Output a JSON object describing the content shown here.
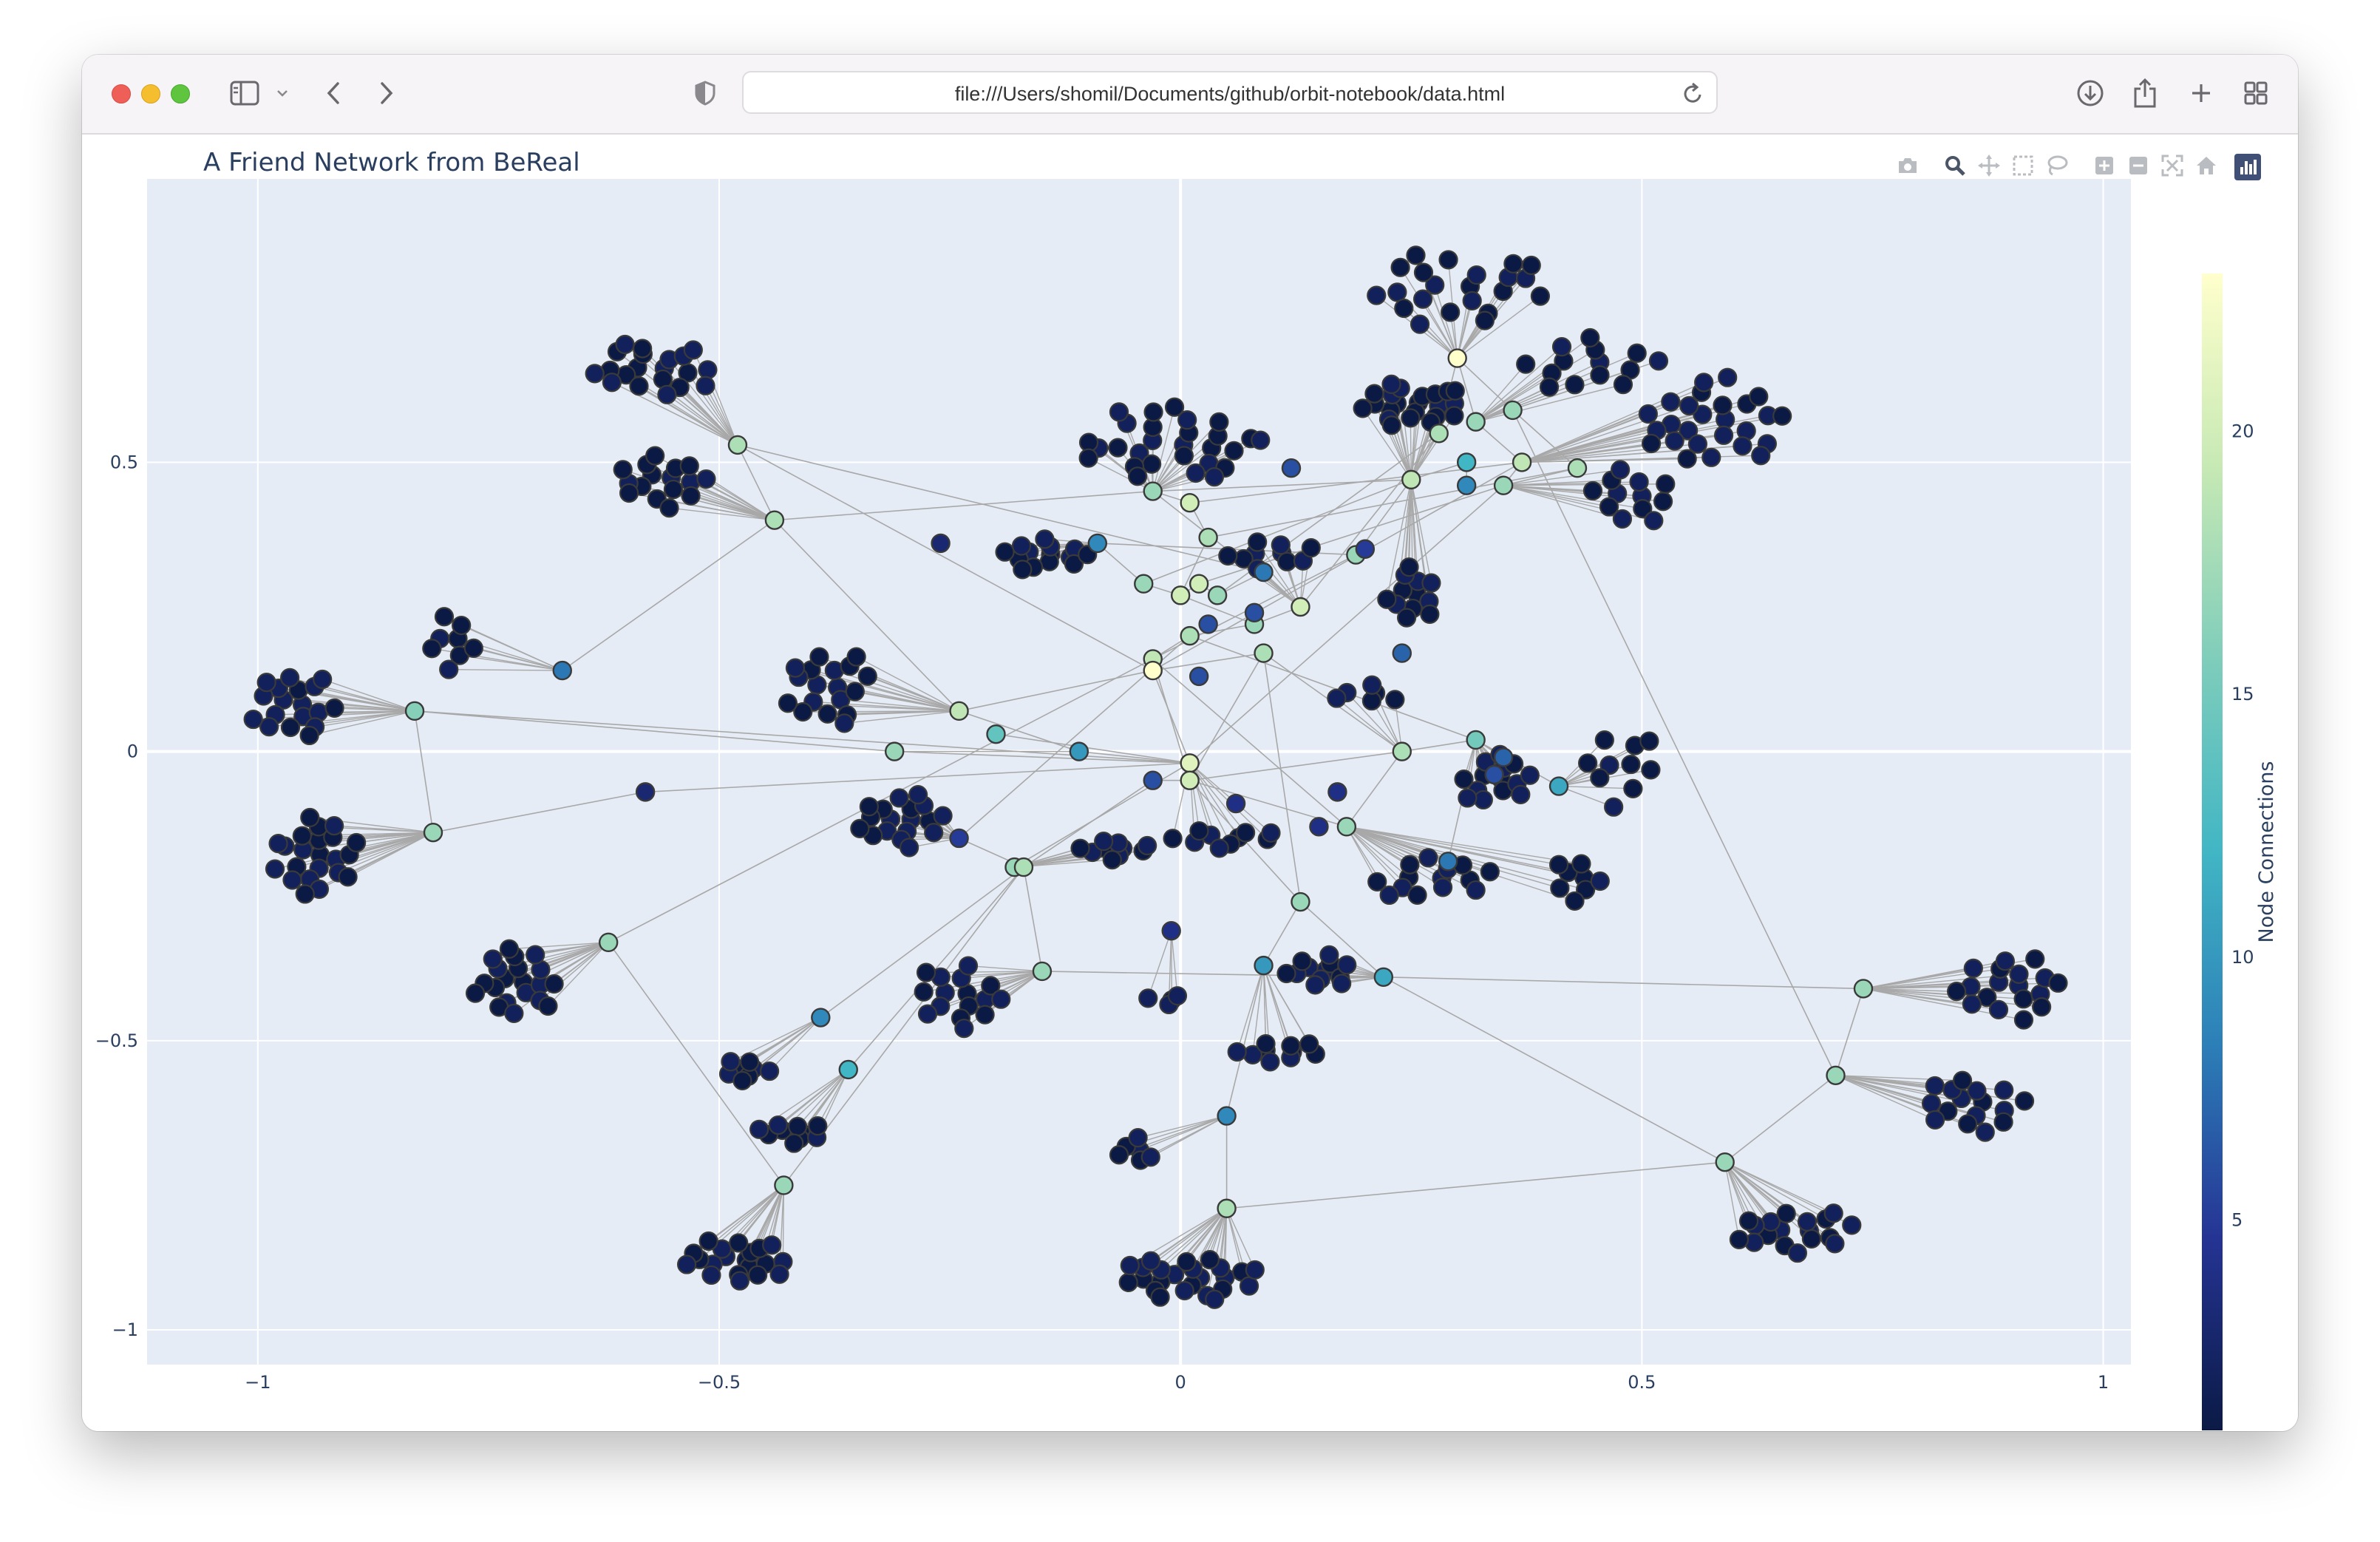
{
  "browser": {
    "url": "file:///Users/shomil/Documents/github/orbit-notebook/data.html",
    "icons": [
      "sidebar-icon",
      "chevron-down-icon",
      "back-icon",
      "forward-icon",
      "shield-icon",
      "reload-icon",
      "download-icon",
      "share-icon",
      "plus-icon",
      "tab-overview-icon"
    ]
  },
  "plot": {
    "title": "A Friend Network from BeReal",
    "colorbar_title": "Node Connections",
    "colorbar_ticks": [
      5,
      10,
      15,
      20
    ],
    "color_range": [
      1,
      23
    ],
    "colorscale": [
      "#0b1a45",
      "#253494",
      "#2c7fb8",
      "#41b6c4",
      "#7fcdbb",
      "#c7e9b4",
      "#ffffcc"
    ],
    "xlim": [
      -1.12,
      1.03
    ],
    "ylim": [
      -1.06,
      0.99
    ],
    "xticks": [
      -1,
      -0.5,
      0,
      0.5,
      1
    ],
    "xtick_labels": [
      "−1",
      "−0.5",
      "0",
      "0.5",
      "1"
    ],
    "yticks": [
      -1,
      -0.5,
      0,
      0.5
    ],
    "ytick_labels": [
      "−1",
      "−0.5",
      "0",
      "0.5"
    ],
    "bg_color": "#e5ecf6",
    "edge_color": "#a8a8a8",
    "modebar_icons": [
      "camera-icon",
      "zoom-icon",
      "pan-icon",
      "box-select-icon",
      "lasso-icon",
      "zoom-in-icon",
      "zoom-out-icon",
      "autoscale-icon",
      "home-icon",
      "plotly-logo-icon"
    ]
  },
  "chart_data": {
    "type": "scatter",
    "title": "A Friend Network from BeReal",
    "xlabel": "",
    "ylabel": "",
    "legend": "colorbar-right",
    "grid": true,
    "hubs": [
      {
        "x": 0.3,
        "y": 0.68,
        "c": 23
      },
      {
        "x": 0.32,
        "y": 0.57,
        "c": 17
      },
      {
        "x": 0.36,
        "y": 0.59,
        "c": 17
      },
      {
        "x": 0.28,
        "y": 0.55,
        "c": 18
      },
      {
        "x": 0.37,
        "y": 0.5,
        "c": 19
      },
      {
        "x": 0.43,
        "y": 0.49,
        "c": 18
      },
      {
        "x": 0.35,
        "y": 0.46,
        "c": 17
      },
      {
        "x": 0.25,
        "y": 0.47,
        "c": 19
      },
      {
        "x": 0.31,
        "y": 0.5,
        "c": 12
      },
      {
        "x": 0.31,
        "y": 0.46,
        "c": 9
      },
      {
        "x": -0.48,
        "y": 0.53,
        "c": 18
      },
      {
        "x": -0.44,
        "y": 0.4,
        "c": 18
      },
      {
        "x": -0.83,
        "y": 0.07,
        "c": 16
      },
      {
        "x": -0.67,
        "y": 0.14,
        "c": 8
      },
      {
        "x": -0.81,
        "y": -0.14,
        "c": 17
      },
      {
        "x": -0.31,
        "y": 0.0,
        "c": 17
      },
      {
        "x": -0.24,
        "y": 0.07,
        "c": 19
      },
      {
        "x": -0.2,
        "y": 0.03,
        "c": 14
      },
      {
        "x": -0.11,
        "y": 0.0,
        "c": 10
      },
      {
        "x": -0.03,
        "y": 0.45,
        "c": 17
      },
      {
        "x": 0.01,
        "y": 0.43,
        "c": 20
      },
      {
        "x": 0.03,
        "y": 0.37,
        "c": 18
      },
      {
        "x": -0.09,
        "y": 0.36,
        "c": 9
      },
      {
        "x": -0.04,
        "y": 0.29,
        "c": 17
      },
      {
        "x": 0.0,
        "y": 0.27,
        "c": 20
      },
      {
        "x": 0.02,
        "y": 0.29,
        "c": 20
      },
      {
        "x": 0.04,
        "y": 0.27,
        "c": 17
      },
      {
        "x": 0.09,
        "y": 0.31,
        "c": 8
      },
      {
        "x": 0.13,
        "y": 0.25,
        "c": 20
      },
      {
        "x": 0.08,
        "y": 0.22,
        "c": 17
      },
      {
        "x": 0.01,
        "y": 0.2,
        "c": 18
      },
      {
        "x": -0.03,
        "y": 0.16,
        "c": 19
      },
      {
        "x": -0.03,
        "y": 0.14,
        "c": 23
      },
      {
        "x": 0.09,
        "y": 0.17,
        "c": 18
      },
      {
        "x": 0.19,
        "y": 0.34,
        "c": 17
      },
      {
        "x": 0.24,
        "y": 0.0,
        "c": 18
      },
      {
        "x": 0.32,
        "y": 0.02,
        "c": 15
      },
      {
        "x": 0.41,
        "y": -0.06,
        "c": 11
      },
      {
        "x": 0.01,
        "y": -0.02,
        "c": 21
      },
      {
        "x": 0.01,
        "y": -0.05,
        "c": 20
      },
      {
        "x": -0.03,
        "y": -0.05,
        "c": 6
      },
      {
        "x": -0.24,
        "y": -0.15,
        "c": 5
      },
      {
        "x": -0.18,
        "y": -0.2,
        "c": 17
      },
      {
        "x": -0.17,
        "y": -0.2,
        "c": 18
      },
      {
        "x": 0.18,
        "y": -0.13,
        "c": 17
      },
      {
        "x": 0.29,
        "y": -0.19,
        "c": 8
      },
      {
        "x": 0.13,
        "y": -0.26,
        "c": 17
      },
      {
        "x": -0.15,
        "y": -0.38,
        "c": 17
      },
      {
        "x": 0.09,
        "y": -0.37,
        "c": 10
      },
      {
        "x": 0.22,
        "y": -0.39,
        "c": 11
      },
      {
        "x": -0.39,
        "y": -0.46,
        "c": 9
      },
      {
        "x": -0.36,
        "y": -0.55,
        "c": 12
      },
      {
        "x": -0.43,
        "y": -0.75,
        "c": 17
      },
      {
        "x": -0.62,
        "y": -0.33,
        "c": 17
      },
      {
        "x": -0.58,
        "y": -0.07,
        "c": 3
      },
      {
        "x": 0.05,
        "y": -0.63,
        "c": 9
      },
      {
        "x": 0.05,
        "y": -0.79,
        "c": 18
      },
      {
        "x": 0.74,
        "y": -0.41,
        "c": 17
      },
      {
        "x": 0.71,
        "y": -0.56,
        "c": 17
      },
      {
        "x": 0.59,
        "y": -0.71,
        "c": 17
      },
      {
        "x": -0.01,
        "y": -0.31,
        "c": 4
      },
      {
        "x": 0.2,
        "y": 0.35,
        "c": 5
      },
      {
        "x": -0.26,
        "y": 0.36,
        "c": 3
      },
      {
        "x": 0.08,
        "y": 0.24,
        "c": 6
      },
      {
        "x": 0.03,
        "y": 0.22,
        "c": 6
      },
      {
        "x": 0.24,
        "y": 0.17,
        "c": 7
      },
      {
        "x": 0.12,
        "y": 0.49,
        "c": 6
      },
      {
        "x": 0.02,
        "y": 0.13,
        "c": 6
      },
      {
        "x": 0.15,
        "y": -0.13,
        "c": 4
      },
      {
        "x": 0.06,
        "y": -0.09,
        "c": 4
      },
      {
        "x": 0.17,
        "y": -0.07,
        "c": 4
      },
      {
        "x": 0.35,
        "y": -0.01,
        "c": 7
      },
      {
        "x": 0.34,
        "y": -0.04,
        "c": 6
      }
    ],
    "clusters": [
      {
        "hub": 0,
        "n": 22,
        "cx": 0.3,
        "cy": 0.8,
        "rx": 0.1,
        "ry": 0.07
      },
      {
        "hub": 1,
        "n": 14,
        "cx": 0.44,
        "cy": 0.67,
        "rx": 0.08,
        "ry": 0.05
      },
      {
        "hub": 4,
        "n": 26,
        "cx": 0.58,
        "cy": 0.57,
        "rx": 0.08,
        "ry": 0.08
      },
      {
        "hub": 6,
        "n": 12,
        "cx": 0.49,
        "cy": 0.44,
        "rx": 0.05,
        "ry": 0.05
      },
      {
        "hub": 10,
        "n": 20,
        "cx": -0.57,
        "cy": 0.66,
        "rx": 0.07,
        "ry": 0.05
      },
      {
        "hub": 11,
        "n": 16,
        "cx": -0.56,
        "cy": 0.47,
        "rx": 0.05,
        "ry": 0.05
      },
      {
        "hub": 12,
        "n": 18,
        "cx": -0.96,
        "cy": 0.08,
        "rx": 0.05,
        "ry": 0.06
      },
      {
        "hub": 13,
        "n": 8,
        "cx": -0.79,
        "cy": 0.19,
        "rx": 0.03,
        "ry": 0.05
      },
      {
        "hub": 14,
        "n": 22,
        "cx": -0.94,
        "cy": -0.18,
        "rx": 0.05,
        "ry": 0.07
      },
      {
        "hub": 16,
        "n": 18,
        "cx": -0.38,
        "cy": 0.11,
        "rx": 0.05,
        "ry": 0.07
      },
      {
        "hub": 19,
        "n": 28,
        "cx": -0.01,
        "cy": 0.53,
        "rx": 0.1,
        "ry": 0.07
      },
      {
        "hub": 22,
        "n": 14,
        "cx": -0.15,
        "cy": 0.34,
        "rx": 0.05,
        "ry": 0.03
      },
      {
        "hub": 28,
        "n": 10,
        "cx": 0.1,
        "cy": 0.34,
        "rx": 0.05,
        "ry": 0.03
      },
      {
        "hub": 7,
        "n": 22,
        "cx": 0.25,
        "cy": 0.6,
        "rx": 0.06,
        "ry": 0.04
      },
      {
        "hub": 7,
        "n": 12,
        "cx": 0.25,
        "cy": 0.27,
        "rx": 0.03,
        "ry": 0.05
      },
      {
        "hub": 36,
        "n": 14,
        "cx": 0.34,
        "cy": -0.05,
        "rx": 0.04,
        "ry": 0.05
      },
      {
        "hub": 37,
        "n": 10,
        "cx": 0.48,
        "cy": -0.03,
        "rx": 0.04,
        "ry": 0.08
      },
      {
        "hub": 35,
        "n": 6,
        "cx": 0.2,
        "cy": 0.1,
        "rx": 0.04,
        "ry": 0.02
      },
      {
        "hub": 41,
        "n": 18,
        "cx": -0.3,
        "cy": -0.12,
        "rx": 0.05,
        "ry": 0.05
      },
      {
        "hub": 42,
        "n": 10,
        "cx": -0.07,
        "cy": -0.17,
        "rx": 0.04,
        "ry": 0.02
      },
      {
        "hub": 44,
        "n": 14,
        "cx": 0.27,
        "cy": -0.22,
        "rx": 0.07,
        "ry": 0.04
      },
      {
        "hub": 44,
        "n": 8,
        "cx": 0.43,
        "cy": -0.22,
        "rx": 0.03,
        "ry": 0.04
      },
      {
        "hub": 47,
        "n": 16,
        "cx": -0.24,
        "cy": -0.42,
        "rx": 0.05,
        "ry": 0.06
      },
      {
        "hub": 48,
        "n": 10,
        "cx": 0.11,
        "cy": -0.52,
        "rx": 0.05,
        "ry": 0.02
      },
      {
        "hub": 49,
        "n": 12,
        "cx": 0.15,
        "cy": -0.38,
        "rx": 0.04,
        "ry": 0.03
      },
      {
        "hub": 50,
        "n": 8,
        "cx": -0.47,
        "cy": -0.55,
        "rx": 0.03,
        "ry": 0.02
      },
      {
        "hub": 51,
        "n": 10,
        "cx": -0.42,
        "cy": -0.66,
        "rx": 0.04,
        "ry": 0.02
      },
      {
        "hub": 52,
        "n": 20,
        "cx": -0.48,
        "cy": -0.88,
        "rx": 0.06,
        "ry": 0.04
      },
      {
        "hub": 53,
        "n": 20,
        "cx": -0.72,
        "cy": -0.4,
        "rx": 0.05,
        "ry": 0.06
      },
      {
        "hub": 55,
        "n": 6,
        "cx": -0.05,
        "cy": -0.69,
        "rx": 0.02,
        "ry": 0.03
      },
      {
        "hub": 56,
        "n": 24,
        "cx": 0.01,
        "cy": -0.91,
        "rx": 0.08,
        "ry": 0.04
      },
      {
        "hub": 57,
        "n": 18,
        "cx": 0.9,
        "cy": -0.41,
        "rx": 0.06,
        "ry": 0.06
      },
      {
        "hub": 58,
        "n": 16,
        "cx": 0.86,
        "cy": -0.61,
        "rx": 0.06,
        "ry": 0.05
      },
      {
        "hub": 59,
        "n": 18,
        "cx": 0.67,
        "cy": -0.83,
        "rx": 0.07,
        "ry": 0.04
      },
      {
        "hub": 60,
        "n": 4,
        "cx": -0.02,
        "cy": -0.43,
        "rx": 0.03,
        "ry": 0.01
      },
      {
        "hub": 38,
        "n": 10,
        "cx": 0.05,
        "cy": -0.15,
        "rx": 0.06,
        "ry": 0.02
      }
    ],
    "hub_links": [
      [
        0,
        1
      ],
      [
        0,
        2
      ],
      [
        0,
        3
      ],
      [
        1,
        4
      ],
      [
        2,
        5
      ],
      [
        3,
        7
      ],
      [
        4,
        6
      ],
      [
        5,
        6
      ],
      [
        7,
        8
      ],
      [
        8,
        9
      ],
      [
        7,
        34
      ],
      [
        3,
        28
      ],
      [
        4,
        32
      ],
      [
        6,
        38
      ],
      [
        2,
        58
      ],
      [
        10,
        11
      ],
      [
        11,
        16
      ],
      [
        10,
        27
      ],
      [
        11,
        19
      ],
      [
        12,
        15
      ],
      [
        13,
        11
      ],
      [
        14,
        54
      ],
      [
        54,
        38
      ],
      [
        15,
        18
      ],
      [
        15,
        38
      ],
      [
        16,
        18
      ],
      [
        17,
        38
      ],
      [
        18,
        38
      ],
      [
        16,
        32
      ],
      [
        19,
        20
      ],
      [
        20,
        21
      ],
      [
        21,
        24
      ],
      [
        22,
        23
      ],
      [
        23,
        24
      ],
      [
        24,
        25
      ],
      [
        25,
        26
      ],
      [
        26,
        27
      ],
      [
        27,
        28
      ],
      [
        28,
        29
      ],
      [
        29,
        30
      ],
      [
        30,
        31
      ],
      [
        31,
        32
      ],
      [
        32,
        33
      ],
      [
        33,
        35
      ],
      [
        32,
        38
      ],
      [
        31,
        39
      ],
      [
        33,
        39
      ],
      [
        34,
        31
      ],
      [
        35,
        36
      ],
      [
        36,
        37
      ],
      [
        35,
        39
      ],
      [
        38,
        39
      ],
      [
        39,
        40
      ],
      [
        38,
        42
      ],
      [
        40,
        43
      ],
      [
        41,
        43
      ],
      [
        42,
        43
      ],
      [
        43,
        47
      ],
      [
        43,
        50
      ],
      [
        43,
        51
      ],
      [
        47,
        49
      ],
      [
        39,
        44
      ],
      [
        44,
        45
      ],
      [
        39,
        46
      ],
      [
        46,
        48
      ],
      [
        46,
        49
      ],
      [
        49,
        57
      ],
      [
        49,
        59
      ],
      [
        48,
        55
      ],
      [
        55,
        56
      ],
      [
        56,
        59
      ],
      [
        57,
        58
      ],
      [
        58,
        59
      ],
      [
        52,
        43
      ],
      [
        53,
        52
      ],
      [
        53,
        31
      ],
      [
        14,
        12
      ],
      [
        19,
        7
      ],
      [
        20,
        4
      ],
      [
        21,
        5
      ],
      [
        24,
        29
      ],
      [
        25,
        6
      ],
      [
        30,
        36
      ],
      [
        31,
        44
      ],
      [
        33,
        46
      ],
      [
        30,
        41
      ],
      [
        19,
        28
      ],
      [
        26,
        3
      ],
      [
        35,
        44
      ],
      [
        36,
        45
      ],
      [
        12,
        38
      ],
      [
        10,
        32
      ],
      [
        22,
        34
      ],
      [
        23,
        7
      ]
    ]
  }
}
